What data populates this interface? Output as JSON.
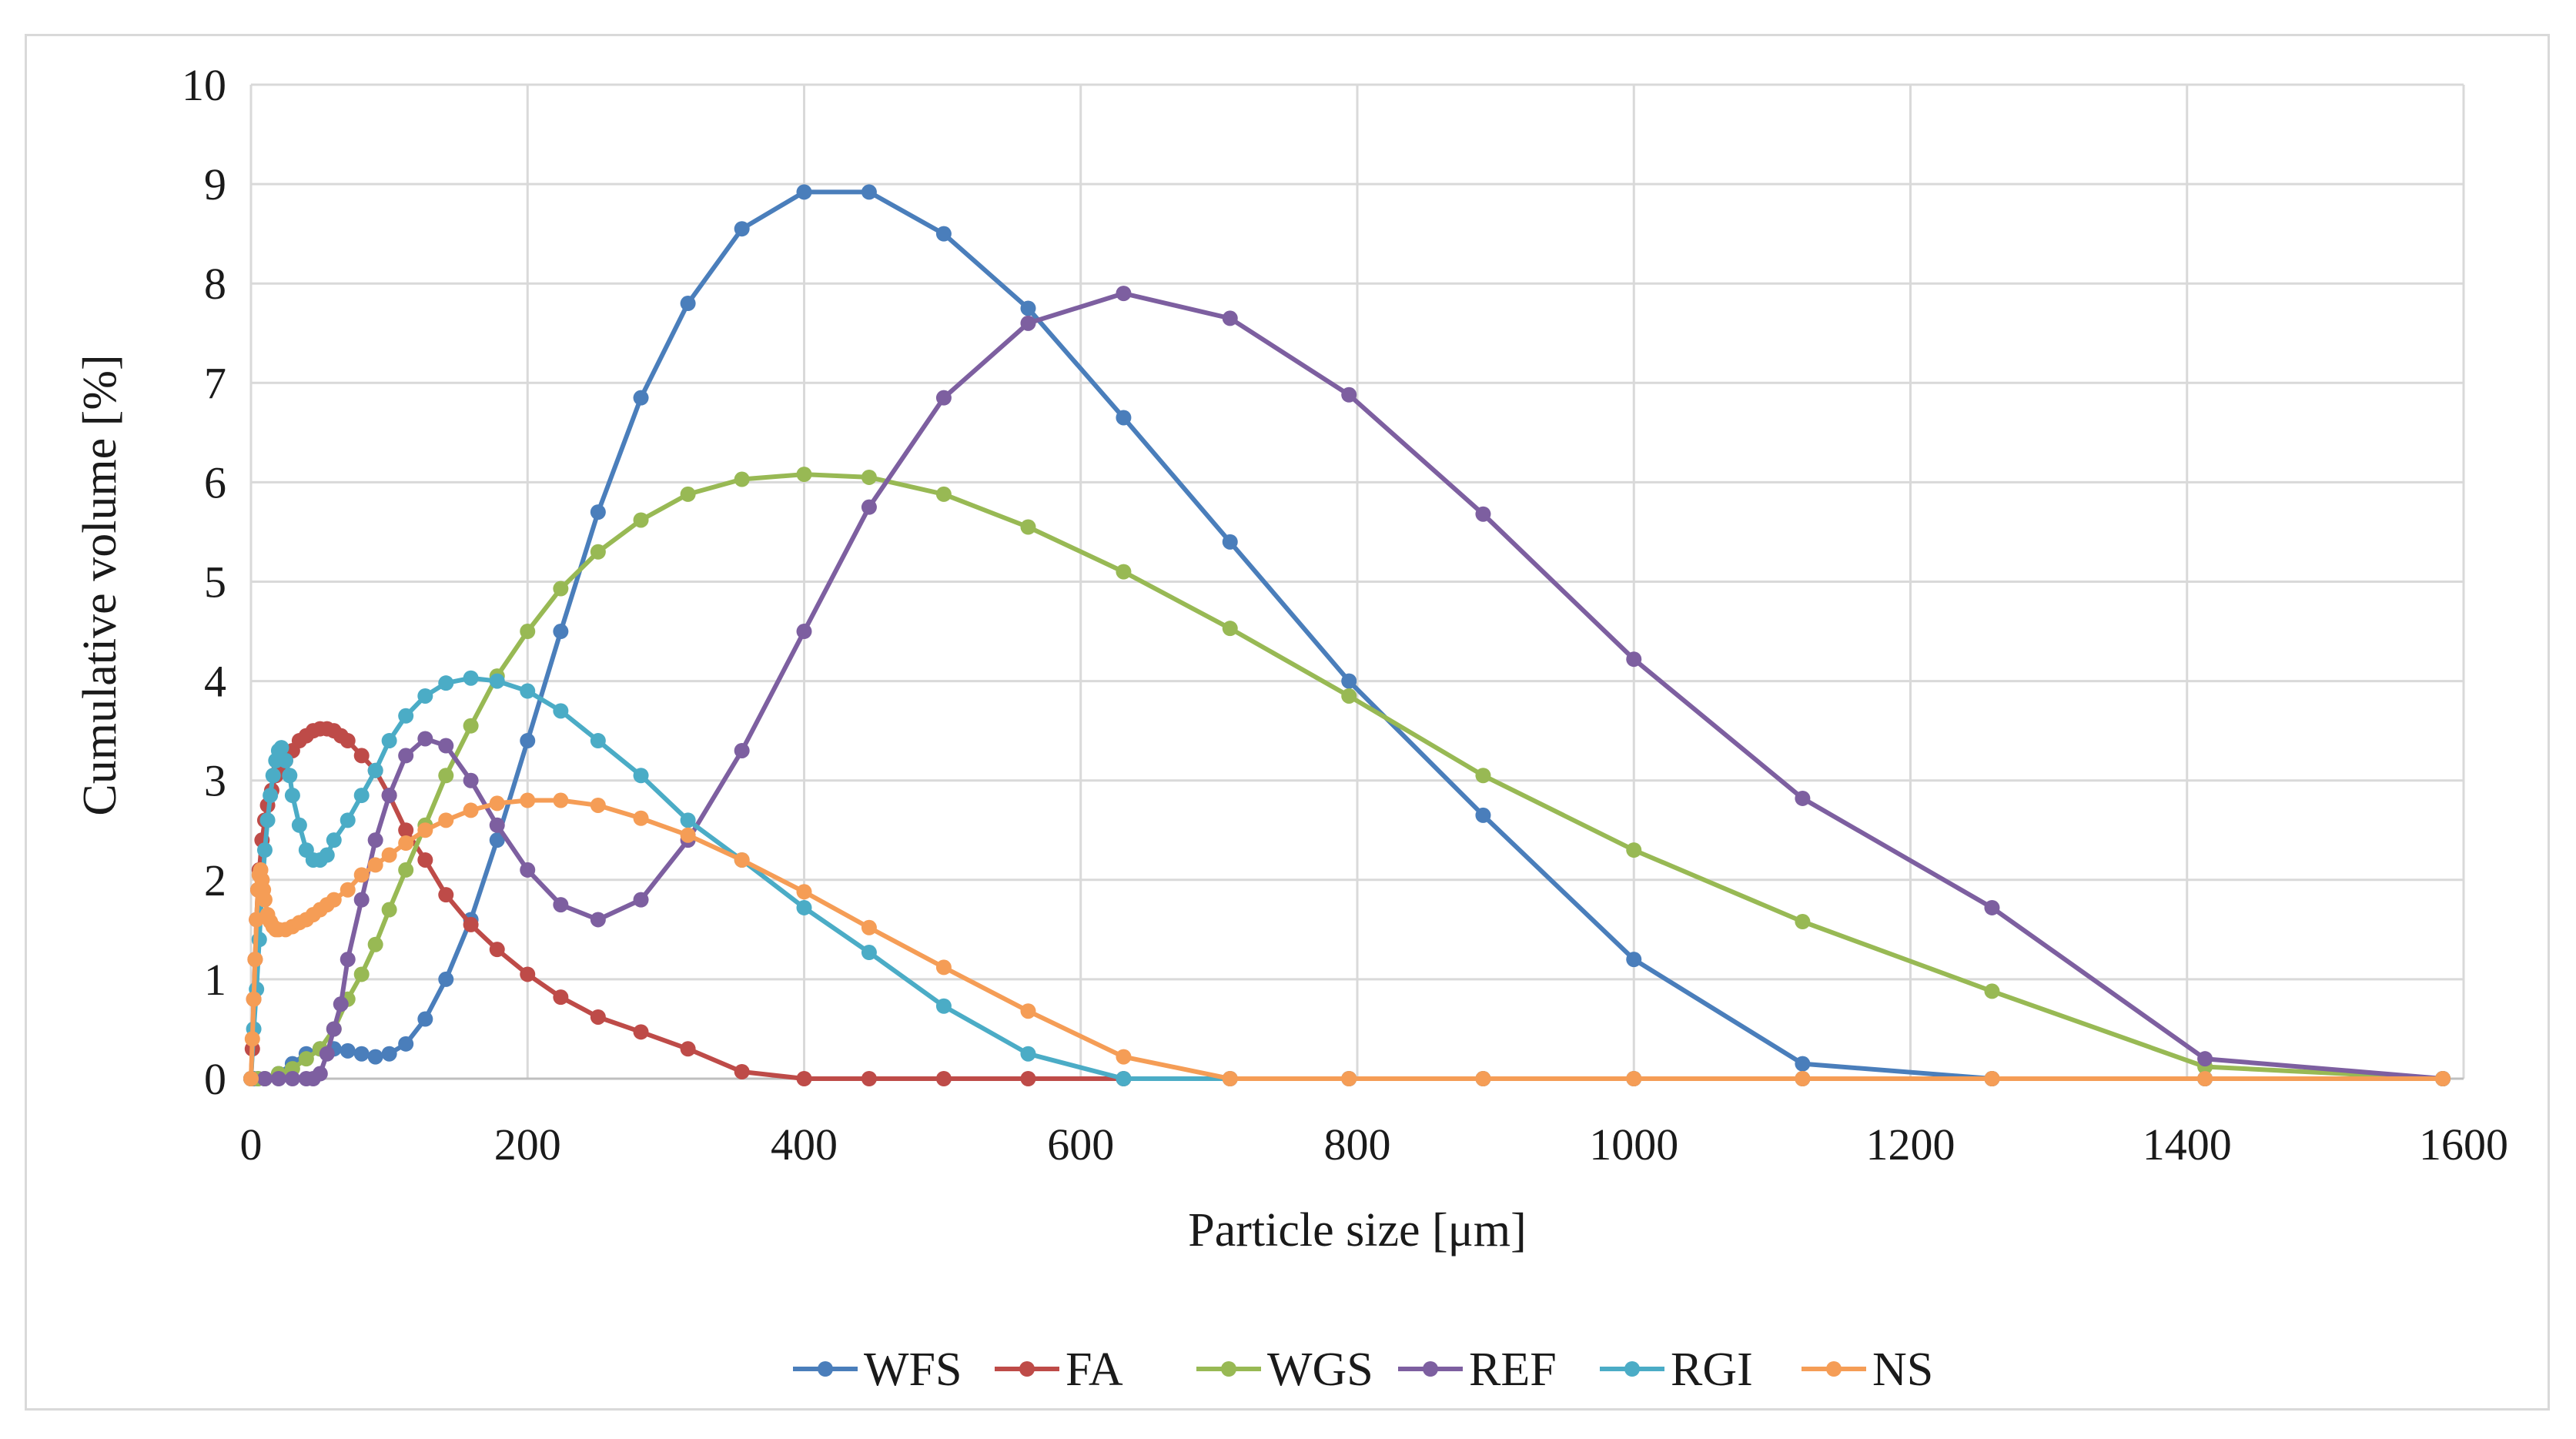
{
  "chart_data": {
    "type": "line",
    "title": "",
    "xlabel": "Particle size [μm]",
    "ylabel": "Cumulative volume [%]",
    "xlim": [
      0,
      1600
    ],
    "ylim": [
      0,
      10
    ],
    "xticks": [
      0,
      200,
      400,
      600,
      800,
      1000,
      1200,
      1400,
      1600
    ],
    "yticks": [
      0,
      1,
      2,
      3,
      4,
      5,
      6,
      7,
      8,
      9,
      10
    ],
    "grid": true,
    "legend_position": "bottom",
    "series": [
      {
        "name": "WFS",
        "color": "#4a7ebb",
        "x": [
          0,
          2,
          5,
          10,
          20,
          30,
          40,
          50,
          60,
          70,
          80,
          90,
          100,
          112,
          126,
          141,
          159,
          178,
          200,
          224,
          251,
          282,
          316,
          355,
          400,
          447,
          501,
          562,
          631,
          708,
          794,
          891,
          1000,
          1122,
          1259,
          1413,
          1585
        ],
        "values": [
          0,
          0,
          0,
          0,
          0.05,
          0.15,
          0.25,
          0.3,
          0.3,
          0.28,
          0.25,
          0.22,
          0.25,
          0.35,
          0.6,
          1.0,
          1.6,
          2.4,
          3.4,
          4.5,
          5.7,
          6.85,
          7.8,
          8.55,
          8.92,
          8.92,
          8.5,
          7.75,
          6.65,
          5.4,
          4.0,
          2.65,
          1.2,
          0.15,
          0,
          0,
          0
        ]
      },
      {
        "name": "FA",
        "color": "#be4b48",
        "x": [
          0,
          1,
          2,
          3,
          4,
          5,
          6,
          8,
          10,
          12,
          15,
          18,
          20,
          25,
          30,
          35,
          40,
          45,
          50,
          55,
          60,
          65,
          70,
          80,
          90,
          100,
          112,
          126,
          141,
          159,
          178,
          200,
          224,
          251,
          282,
          316,
          355,
          400,
          447,
          501,
          562,
          631,
          708,
          794,
          891,
          1000,
          1122,
          1259,
          1413,
          1585
        ],
        "values": [
          0,
          0.3,
          0.8,
          1.2,
          1.6,
          1.9,
          2.1,
          2.4,
          2.6,
          2.75,
          2.9,
          3.05,
          3.1,
          3.2,
          3.3,
          3.4,
          3.45,
          3.5,
          3.52,
          3.52,
          3.5,
          3.45,
          3.4,
          3.25,
          3.1,
          2.85,
          2.5,
          2.2,
          1.85,
          1.55,
          1.3,
          1.05,
          0.82,
          0.62,
          0.47,
          0.3,
          0.07,
          0,
          0,
          0,
          0,
          0,
          0,
          0,
          0,
          0,
          0,
          0,
          0,
          0
        ]
      },
      {
        "name": "WGS",
        "color": "#98b954",
        "x": [
          0,
          5,
          10,
          20,
          30,
          40,
          50,
          60,
          70,
          80,
          90,
          100,
          112,
          126,
          141,
          159,
          178,
          200,
          224,
          251,
          282,
          316,
          355,
          400,
          447,
          501,
          562,
          631,
          708,
          794,
          891,
          1000,
          1122,
          1259,
          1413,
          1585
        ],
        "values": [
          0,
          0,
          0,
          0.05,
          0.1,
          0.2,
          0.3,
          0.5,
          0.8,
          1.05,
          1.35,
          1.7,
          2.1,
          2.55,
          3.05,
          3.55,
          4.05,
          4.5,
          4.93,
          5.3,
          5.62,
          5.88,
          6.03,
          6.08,
          6.05,
          5.88,
          5.55,
          5.1,
          4.53,
          3.85,
          3.05,
          2.3,
          1.58,
          0.88,
          0.12,
          0
        ]
      },
      {
        "name": "REF",
        "color": "#7d5fa0",
        "x": [
          0,
          10,
          20,
          30,
          40,
          45,
          50,
          55,
          60,
          65,
          70,
          80,
          90,
          100,
          112,
          126,
          141,
          159,
          178,
          200,
          224,
          251,
          282,
          316,
          355,
          400,
          447,
          501,
          562,
          631,
          708,
          794,
          891,
          1000,
          1122,
          1259,
          1413,
          1585
        ],
        "values": [
          0,
          0,
          0,
          0,
          0,
          0,
          0.05,
          0.25,
          0.5,
          0.75,
          1.2,
          1.8,
          2.4,
          2.85,
          3.25,
          3.42,
          3.35,
          3.0,
          2.55,
          2.1,
          1.75,
          1.6,
          1.8,
          2.4,
          3.3,
          4.5,
          5.75,
          6.85,
          7.6,
          7.9,
          7.65,
          6.88,
          5.68,
          4.22,
          2.82,
          1.72,
          0.2,
          0
        ]
      },
      {
        "name": "RGI",
        "color": "#4bacc6",
        "x": [
          0,
          2,
          4,
          6,
          8,
          10,
          12,
          14,
          16,
          18,
          20,
          22,
          25,
          28,
          30,
          35,
          40,
          45,
          50,
          55,
          60,
          70,
          80,
          90,
          100,
          112,
          126,
          141,
          159,
          178,
          200,
          224,
          251,
          282,
          316,
          355,
          400,
          447,
          501,
          562,
          631,
          708,
          794,
          891,
          1000,
          1122,
          1259,
          1413,
          1585
        ],
        "values": [
          0,
          0.5,
          0.9,
          1.4,
          1.9,
          2.3,
          2.6,
          2.85,
          3.05,
          3.2,
          3.3,
          3.33,
          3.2,
          3.05,
          2.85,
          2.55,
          2.3,
          2.2,
          2.2,
          2.25,
          2.4,
          2.6,
          2.85,
          3.1,
          3.4,
          3.65,
          3.85,
          3.98,
          4.03,
          4.0,
          3.9,
          3.7,
          3.4,
          3.05,
          2.6,
          2.2,
          1.72,
          1.27,
          0.73,
          0.25,
          0,
          0,
          0,
          0,
          0,
          0,
          0,
          0,
          0
        ]
      },
      {
        "name": "NS",
        "color": "#f59d56",
        "x": [
          0,
          1,
          2,
          3,
          4,
          5,
          6,
          7,
          8,
          9,
          10,
          12,
          14,
          16,
          18,
          20,
          25,
          30,
          35,
          40,
          45,
          50,
          55,
          60,
          70,
          80,
          90,
          100,
          112,
          126,
          141,
          159,
          178,
          200,
          224,
          251,
          282,
          316,
          355,
          400,
          447,
          501,
          562,
          631,
          708,
          794,
          891,
          1000,
          1122,
          1259,
          1413,
          1585
        ],
        "values": [
          0,
          0.4,
          0.8,
          1.2,
          1.6,
          1.9,
          2.05,
          2.1,
          2.0,
          1.9,
          1.8,
          1.65,
          1.58,
          1.53,
          1.5,
          1.5,
          1.5,
          1.53,
          1.57,
          1.6,
          1.65,
          1.7,
          1.75,
          1.8,
          1.9,
          2.05,
          2.15,
          2.25,
          2.37,
          2.5,
          2.6,
          2.7,
          2.77,
          2.8,
          2.8,
          2.75,
          2.62,
          2.45,
          2.2,
          1.88,
          1.52,
          1.12,
          0.68,
          0.22,
          0,
          0,
          0,
          0,
          0,
          0,
          0,
          0
        ]
      }
    ]
  }
}
